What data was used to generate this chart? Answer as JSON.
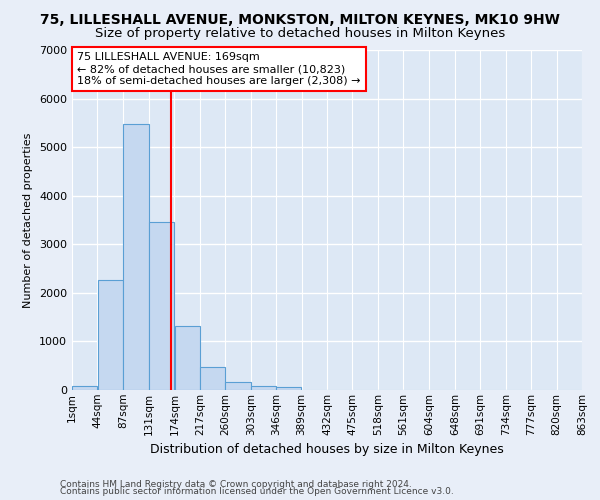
{
  "title_line1": "75, LILLESHALL AVENUE, MONKSTON, MILTON KEYNES, MK10 9HW",
  "title_line2": "Size of property relative to detached houses in Milton Keynes",
  "xlabel": "Distribution of detached houses by size in Milton Keynes",
  "ylabel": "Number of detached properties",
  "footnote1": "Contains HM Land Registry data © Crown copyright and database right 2024.",
  "footnote2": "Contains public sector information licensed under the Open Government Licence v3.0.",
  "bar_values": [
    75,
    2275,
    5475,
    3450,
    1325,
    475,
    160,
    90,
    55,
    0,
    0,
    0,
    0,
    0,
    0,
    0,
    0,
    0,
    0,
    0
  ],
  "bin_edges": [
    1,
    44,
    87,
    131,
    174,
    217,
    260,
    303,
    346,
    389,
    432,
    475,
    518,
    561,
    604,
    648,
    691,
    734,
    777,
    820,
    863
  ],
  "tick_labels": [
    "1sqm",
    "44sqm",
    "87sqm",
    "131sqm",
    "174sqm",
    "217sqm",
    "260sqm",
    "303sqm",
    "346sqm",
    "389sqm",
    "432sqm",
    "475sqm",
    "518sqm",
    "561sqm",
    "604sqm",
    "648sqm",
    "691sqm",
    "734sqm",
    "777sqm",
    "820sqm",
    "863sqm"
  ],
  "bar_color": "#c5d8f0",
  "bar_edge_color": "#5a9fd4",
  "red_line_x": 169,
  "red_line_label_line1": "75 LILLESHALL AVENUE: 169sqm",
  "red_line_label_line2": "← 82% of detached houses are smaller (10,823)",
  "red_line_label_line3": "18% of semi-detached houses are larger (2,308) →",
  "ylim": [
    0,
    7000
  ],
  "background_color": "#dde8f5",
  "grid_color": "#ffffff",
  "fig_bg_color": "#e8eef8",
  "title1_fontsize": 10,
  "title2_fontsize": 9.5,
  "ylabel_fontsize": 8,
  "xlabel_fontsize": 9
}
